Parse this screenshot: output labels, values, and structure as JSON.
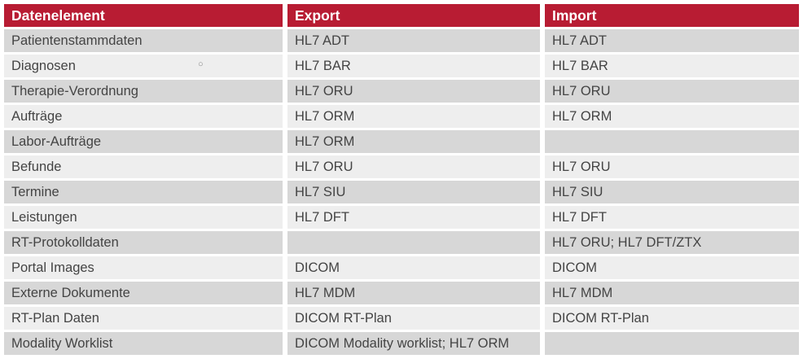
{
  "table": {
    "headers": [
      "Datenelement",
      "Export",
      "Import"
    ],
    "rows": [
      [
        "Patientenstammdaten",
        "HL7 ADT",
        "HL7 ADT"
      ],
      [
        "Diagnosen",
        "HL7 BAR",
        "HL7 BAR"
      ],
      [
        "Therapie-Verordnung",
        "HL7 ORU",
        "HL7 ORU"
      ],
      [
        "Aufträge",
        "HL7 ORM",
        "HL7 ORM"
      ],
      [
        "Labor-Aufträge",
        "HL7 ORM",
        ""
      ],
      [
        "Befunde",
        "HL7 ORU",
        "HL7 ORU"
      ],
      [
        "Termine",
        "HL7 SIU",
        "HL7 SIU"
      ],
      [
        "Leistungen",
        "HL7 DFT",
        "HL7 DFT"
      ],
      [
        "RT-Protokolldaten",
        "",
        "HL7 ORU; HL7 DFT/ZTX"
      ],
      [
        "Portal Images",
        "DICOM",
        "DICOM"
      ],
      [
        "Externe Dokumente",
        "HL7 MDM",
        "HL7 MDM"
      ],
      [
        "RT-Plan Daten",
        "DICOM RT-Plan",
        "DICOM RT-Plan"
      ],
      [
        "Modality Worklist",
        "DICOM Modality worklist; HL7 ORM",
        ""
      ]
    ]
  },
  "colors": {
    "header_bg": "#b81c33",
    "row_odd": "#d7d7d7",
    "row_even": "#eeeeee"
  }
}
